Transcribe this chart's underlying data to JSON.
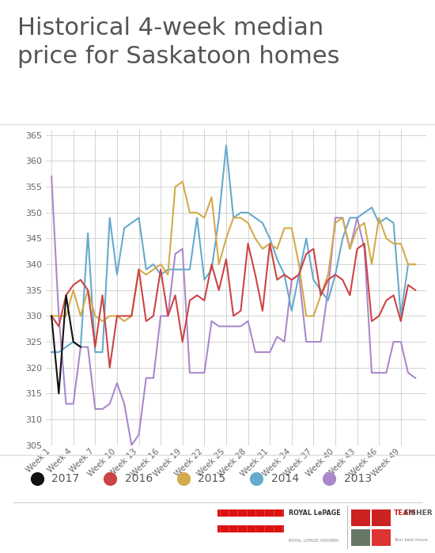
{
  "title_line1": "Historical 4-week median",
  "title_line2": "price for Saskatoon homes",
  "title_color": "#555555",
  "bg_color": "#ffffff",
  "grid_color": "#cccccc",
  "ylim": [
    305,
    366
  ],
  "yticks": [
    305,
    310,
    315,
    320,
    325,
    330,
    335,
    340,
    345,
    350,
    355,
    360,
    365
  ],
  "x_labels": [
    "Week 1",
    "Week 4",
    "Week 7",
    "Week 10",
    "Week 13",
    "Week 16",
    "Week 19",
    "Week 22",
    "Week 25",
    "Week 28",
    "Week 31",
    "Week 34",
    "Week 37",
    "Week 40",
    "Week 43",
    "Week 46",
    "Week 49"
  ],
  "x_tick_positions": [
    1,
    4,
    7,
    10,
    13,
    16,
    19,
    22,
    25,
    28,
    31,
    34,
    37,
    40,
    43,
    46,
    49
  ],
  "xlim": [
    0.2,
    52.5
  ],
  "colors": {
    "2017": "#111111",
    "2016": "#cc4444",
    "2015": "#d4aa4a",
    "2014": "#66aacc",
    "2013": "#aa88cc"
  },
  "data_2017_x": [
    1,
    2,
    3,
    4,
    5
  ],
  "data_2017_y": [
    330,
    315,
    334,
    325,
    324
  ],
  "data_2016_x": [
    1,
    2,
    3,
    4,
    5,
    6,
    7,
    8,
    9,
    10,
    11,
    12,
    13,
    14,
    15,
    16,
    17,
    18,
    19,
    20,
    21,
    22,
    23,
    24,
    25,
    26,
    27,
    28,
    29,
    30,
    31,
    32,
    33,
    34,
    35,
    36,
    37,
    38,
    39,
    40,
    41,
    42,
    43,
    44,
    45,
    46,
    47,
    48,
    49,
    50,
    51
  ],
  "data_2016_y": [
    330,
    328,
    334,
    336,
    337,
    335,
    324,
    334,
    320,
    330,
    330,
    330,
    339,
    329,
    330,
    339,
    330,
    334,
    325,
    333,
    334,
    333,
    340,
    335,
    341,
    330,
    331,
    344,
    338,
    331,
    344,
    337,
    338,
    337,
    338,
    342,
    343,
    334,
    337,
    338,
    337,
    334,
    343,
    344,
    329,
    330,
    333,
    334,
    329,
    336,
    335
  ],
  "data_2015_x": [
    1,
    2,
    3,
    4,
    5,
    6,
    7,
    8,
    9,
    10,
    11,
    12,
    13,
    14,
    15,
    16,
    17,
    18,
    19,
    20,
    21,
    22,
    23,
    24,
    25,
    26,
    27,
    28,
    29,
    30,
    31,
    32,
    33,
    34,
    35,
    36,
    37,
    38,
    39,
    40,
    41,
    42,
    43,
    44,
    45,
    46,
    47,
    48,
    49,
    50,
    51
  ],
  "data_2015_y": [
    330,
    330,
    330,
    335,
    330,
    335,
    330,
    329,
    330,
    330,
    329,
    330,
    339,
    338,
    339,
    340,
    338,
    355,
    356,
    350,
    350,
    349,
    353,
    340,
    345,
    349,
    349,
    348,
    345,
    343,
    344,
    343,
    347,
    347,
    340,
    330,
    330,
    334,
    338,
    348,
    349,
    343,
    347,
    348,
    340,
    349,
    345,
    344,
    344,
    340,
    340
  ],
  "data_2014_x": [
    1,
    2,
    3,
    4,
    5,
    6,
    7,
    8,
    9,
    10,
    11,
    12,
    13,
    14,
    15,
    16,
    17,
    18,
    19,
    20,
    21,
    22,
    23,
    24,
    25,
    26,
    27,
    28,
    29,
    30,
    31,
    32,
    33,
    34,
    35,
    36,
    37,
    38,
    39,
    40,
    41,
    42,
    43,
    44,
    45,
    46,
    47,
    48,
    49,
    50,
    51
  ],
  "data_2014_y": [
    323,
    323,
    324,
    325,
    324,
    346,
    323,
    323,
    349,
    338,
    347,
    348,
    349,
    339,
    340,
    338,
    339,
    339,
    339,
    339,
    349,
    337,
    339,
    349,
    363,
    349,
    350,
    350,
    349,
    348,
    345,
    341,
    338,
    331,
    338,
    345,
    337,
    335,
    333,
    338,
    345,
    349,
    349,
    350,
    351,
    348,
    349,
    348,
    330,
    340,
    340
  ],
  "data_2013_x": [
    1,
    2,
    3,
    4,
    5,
    6,
    7,
    8,
    9,
    10,
    11,
    12,
    13,
    14,
    15,
    16,
    17,
    18,
    19,
    20,
    21,
    22,
    23,
    24,
    25,
    26,
    27,
    28,
    29,
    30,
    31,
    32,
    33,
    34,
    35,
    36,
    37,
    38,
    39,
    40,
    41,
    42,
    43,
    44,
    45,
    46,
    47,
    48,
    49,
    50,
    51
  ],
  "data_2013_y": [
    357,
    330,
    313,
    313,
    324,
    324,
    312,
    312,
    313,
    317,
    313,
    305,
    307,
    318,
    318,
    330,
    330,
    342,
    343,
    319,
    319,
    319,
    329,
    328,
    328,
    328,
    328,
    329,
    323,
    323,
    323,
    326,
    325,
    337,
    338,
    325,
    325,
    325,
    335,
    349,
    349,
    343,
    349,
    343,
    319,
    319,
    319,
    325,
    325,
    319,
    318
  ],
  "legend_order": [
    "2017",
    "2016",
    "2015",
    "2014",
    "2013"
  ],
  "linewidth": 1.5
}
